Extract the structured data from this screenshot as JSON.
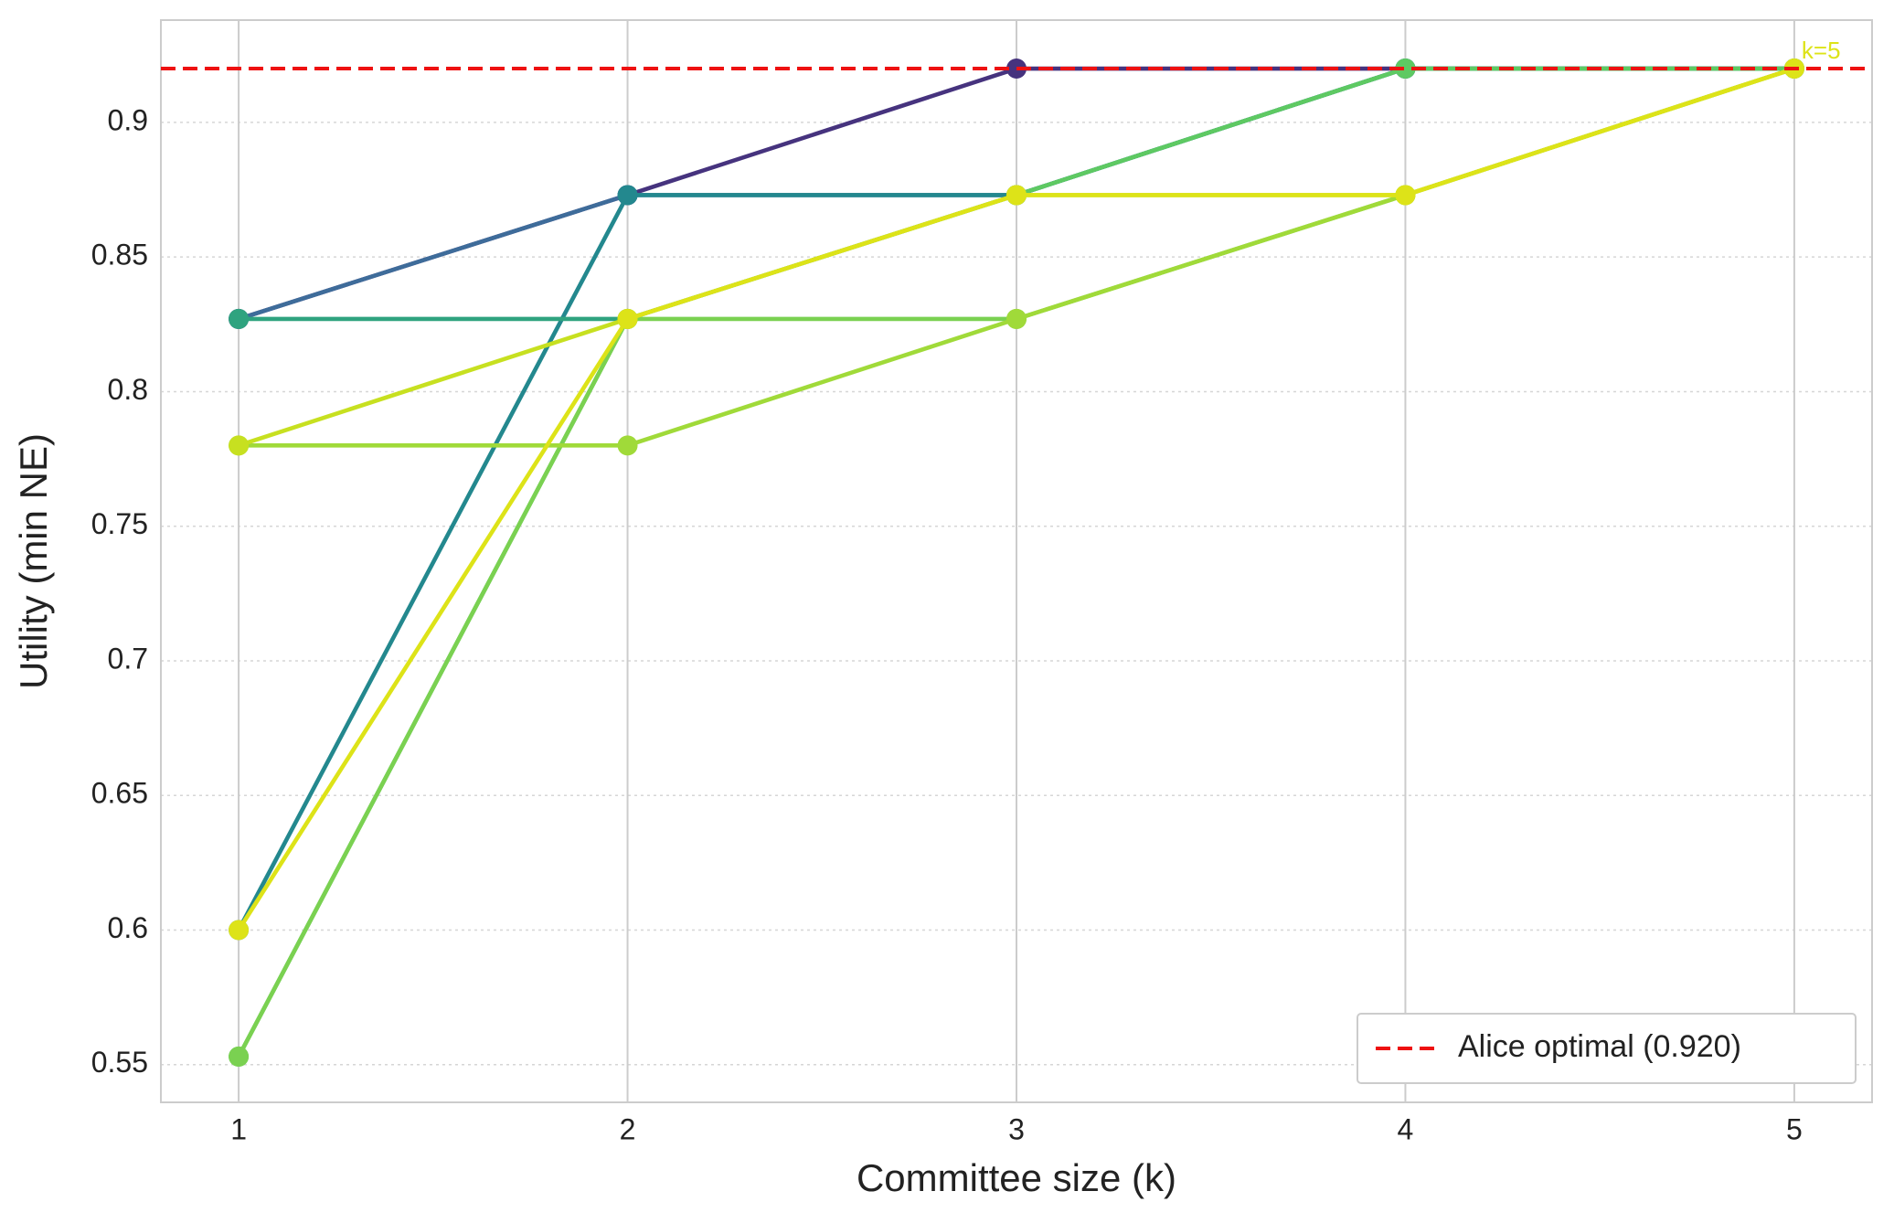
{
  "chart_data": {
    "type": "line",
    "xlabel": "Committee size (k)",
    "ylabel": "Utility (min NE)",
    "x": [
      1,
      2,
      3,
      4,
      5
    ],
    "xlim": [
      0.8,
      5.2
    ],
    "xticks": [
      1,
      2,
      3,
      4,
      5
    ],
    "ylim": [
      0.536,
      0.938
    ],
    "yticks": [
      0.55,
      0.6,
      0.65,
      0.7,
      0.75,
      0.8,
      0.85,
      0.9
    ],
    "grid": true,
    "series": [
      {
        "color": "#46337e",
        "values": [
          0.827,
          0.873,
          0.92,
          0.92,
          0.92
        ]
      },
      {
        "color": "#3e6c9a",
        "values": [
          0.827,
          0.873,
          0.873,
          0.92,
          0.92
        ]
      },
      {
        "color": "#23888e",
        "values": [
          0.6,
          0.873,
          0.873,
          0.92,
          0.92
        ]
      },
      {
        "color": "#2fa37f",
        "values": [
          0.827,
          0.827,
          0.873,
          0.92,
          0.92
        ]
      },
      {
        "color": "#5ec962",
        "values": [
          0.553,
          0.827,
          0.873,
          0.92,
          0.92
        ]
      },
      {
        "color": "#7ad151",
        "values": [
          0.553,
          0.827,
          0.827,
          0.873,
          0.92
        ]
      },
      {
        "color": "#a0da39",
        "values": [
          0.78,
          0.78,
          0.827,
          0.873,
          0.92
        ]
      },
      {
        "color": "#c7e020",
        "values": [
          0.78,
          0.827,
          0.873,
          0.873,
          0.92
        ]
      },
      {
        "color": "#dde318",
        "values": [
          0.6,
          0.827,
          0.873,
          0.873,
          0.92
        ]
      }
    ],
    "hline": {
      "value": 0.92,
      "name": "Alice optimal (0.920)",
      "color": "#ee1111"
    },
    "annotation": {
      "text": "k=5",
      "x": 5,
      "y": 0.926,
      "color": "#dde318"
    },
    "legend": "lower right"
  }
}
